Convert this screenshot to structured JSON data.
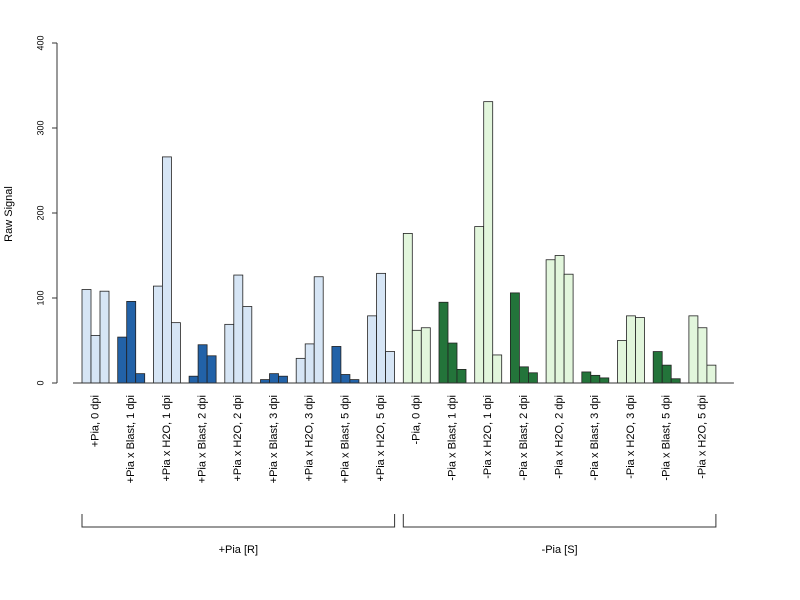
{
  "chart_data": {
    "type": "bar",
    "ylabel": "Raw Signal",
    "ylim": [
      0,
      400
    ],
    "yticks": [
      0,
      100,
      200,
      300,
      400
    ],
    "colors": {
      "pos_light": "#d6e5f5",
      "pos_dark": "#2262a8",
      "neg_light": "#e2f6dc",
      "neg_dark": "#23743a"
    },
    "categories": [
      {
        "label": "+Pia, 0 dpi",
        "tone": "pos_light",
        "values": [
          110,
          56,
          108
        ]
      },
      {
        "label": "+Pia x Blast, 1 dpi",
        "tone": "pos_dark",
        "values": [
          54,
          96,
          11
        ]
      },
      {
        "label": "+Pia x H2O, 1 dpi",
        "tone": "pos_light",
        "values": [
          114,
          266,
          71
        ]
      },
      {
        "label": "+Pia x Blast, 2 dpi",
        "tone": "pos_dark",
        "values": [
          8,
          45,
          32
        ]
      },
      {
        "label": "+Pia x H2O, 2 dpi",
        "tone": "pos_light",
        "values": [
          69,
          127,
          90
        ]
      },
      {
        "label": "+Pia x Blast, 3 dpi",
        "tone": "pos_dark",
        "values": [
          4,
          11,
          8
        ]
      },
      {
        "label": "+Pia x H2O, 3 dpi",
        "tone": "pos_light",
        "values": [
          29,
          46,
          125
        ]
      },
      {
        "label": "+Pia x Blast, 5 dpi",
        "tone": "pos_dark",
        "values": [
          43,
          10,
          4
        ]
      },
      {
        "label": "+Pia x H2O, 5 dpi",
        "tone": "pos_light",
        "values": [
          79,
          129,
          37
        ]
      },
      {
        "label": "-Pia, 0 dpi",
        "tone": "neg_light",
        "values": [
          176,
          62,
          65
        ]
      },
      {
        "label": "-Pia x Blast, 1 dpi",
        "tone": "neg_dark",
        "values": [
          95,
          47,
          16
        ]
      },
      {
        "label": "-Pia x H2O, 1 dpi",
        "tone": "neg_light",
        "values": [
          184,
          331,
          33
        ]
      },
      {
        "label": "-Pia x Blast, 2 dpi",
        "tone": "neg_dark",
        "values": [
          106,
          19,
          12
        ]
      },
      {
        "label": "-Pia x H2O, 2 dpi",
        "tone": "neg_light",
        "values": [
          145,
          150,
          128
        ]
      },
      {
        "label": "-Pia x Blast, 3 dpi",
        "tone": "neg_dark",
        "values": [
          13,
          9,
          6
        ]
      },
      {
        "label": "-Pia x H2O, 3 dpi",
        "tone": "neg_light",
        "values": [
          50,
          79,
          77
        ]
      },
      {
        "label": "-Pia x Blast, 5 dpi",
        "tone": "neg_dark",
        "values": [
          37,
          21,
          5
        ]
      },
      {
        "label": "-Pia x H2O, 5 dpi",
        "tone": "neg_light",
        "values": [
          79,
          65,
          21
        ]
      }
    ],
    "groups": [
      {
        "label": "+Pia [R]",
        "from": 0,
        "to": 8
      },
      {
        "label": "-Pia [S]",
        "from": 9,
        "to": 17
      }
    ]
  }
}
